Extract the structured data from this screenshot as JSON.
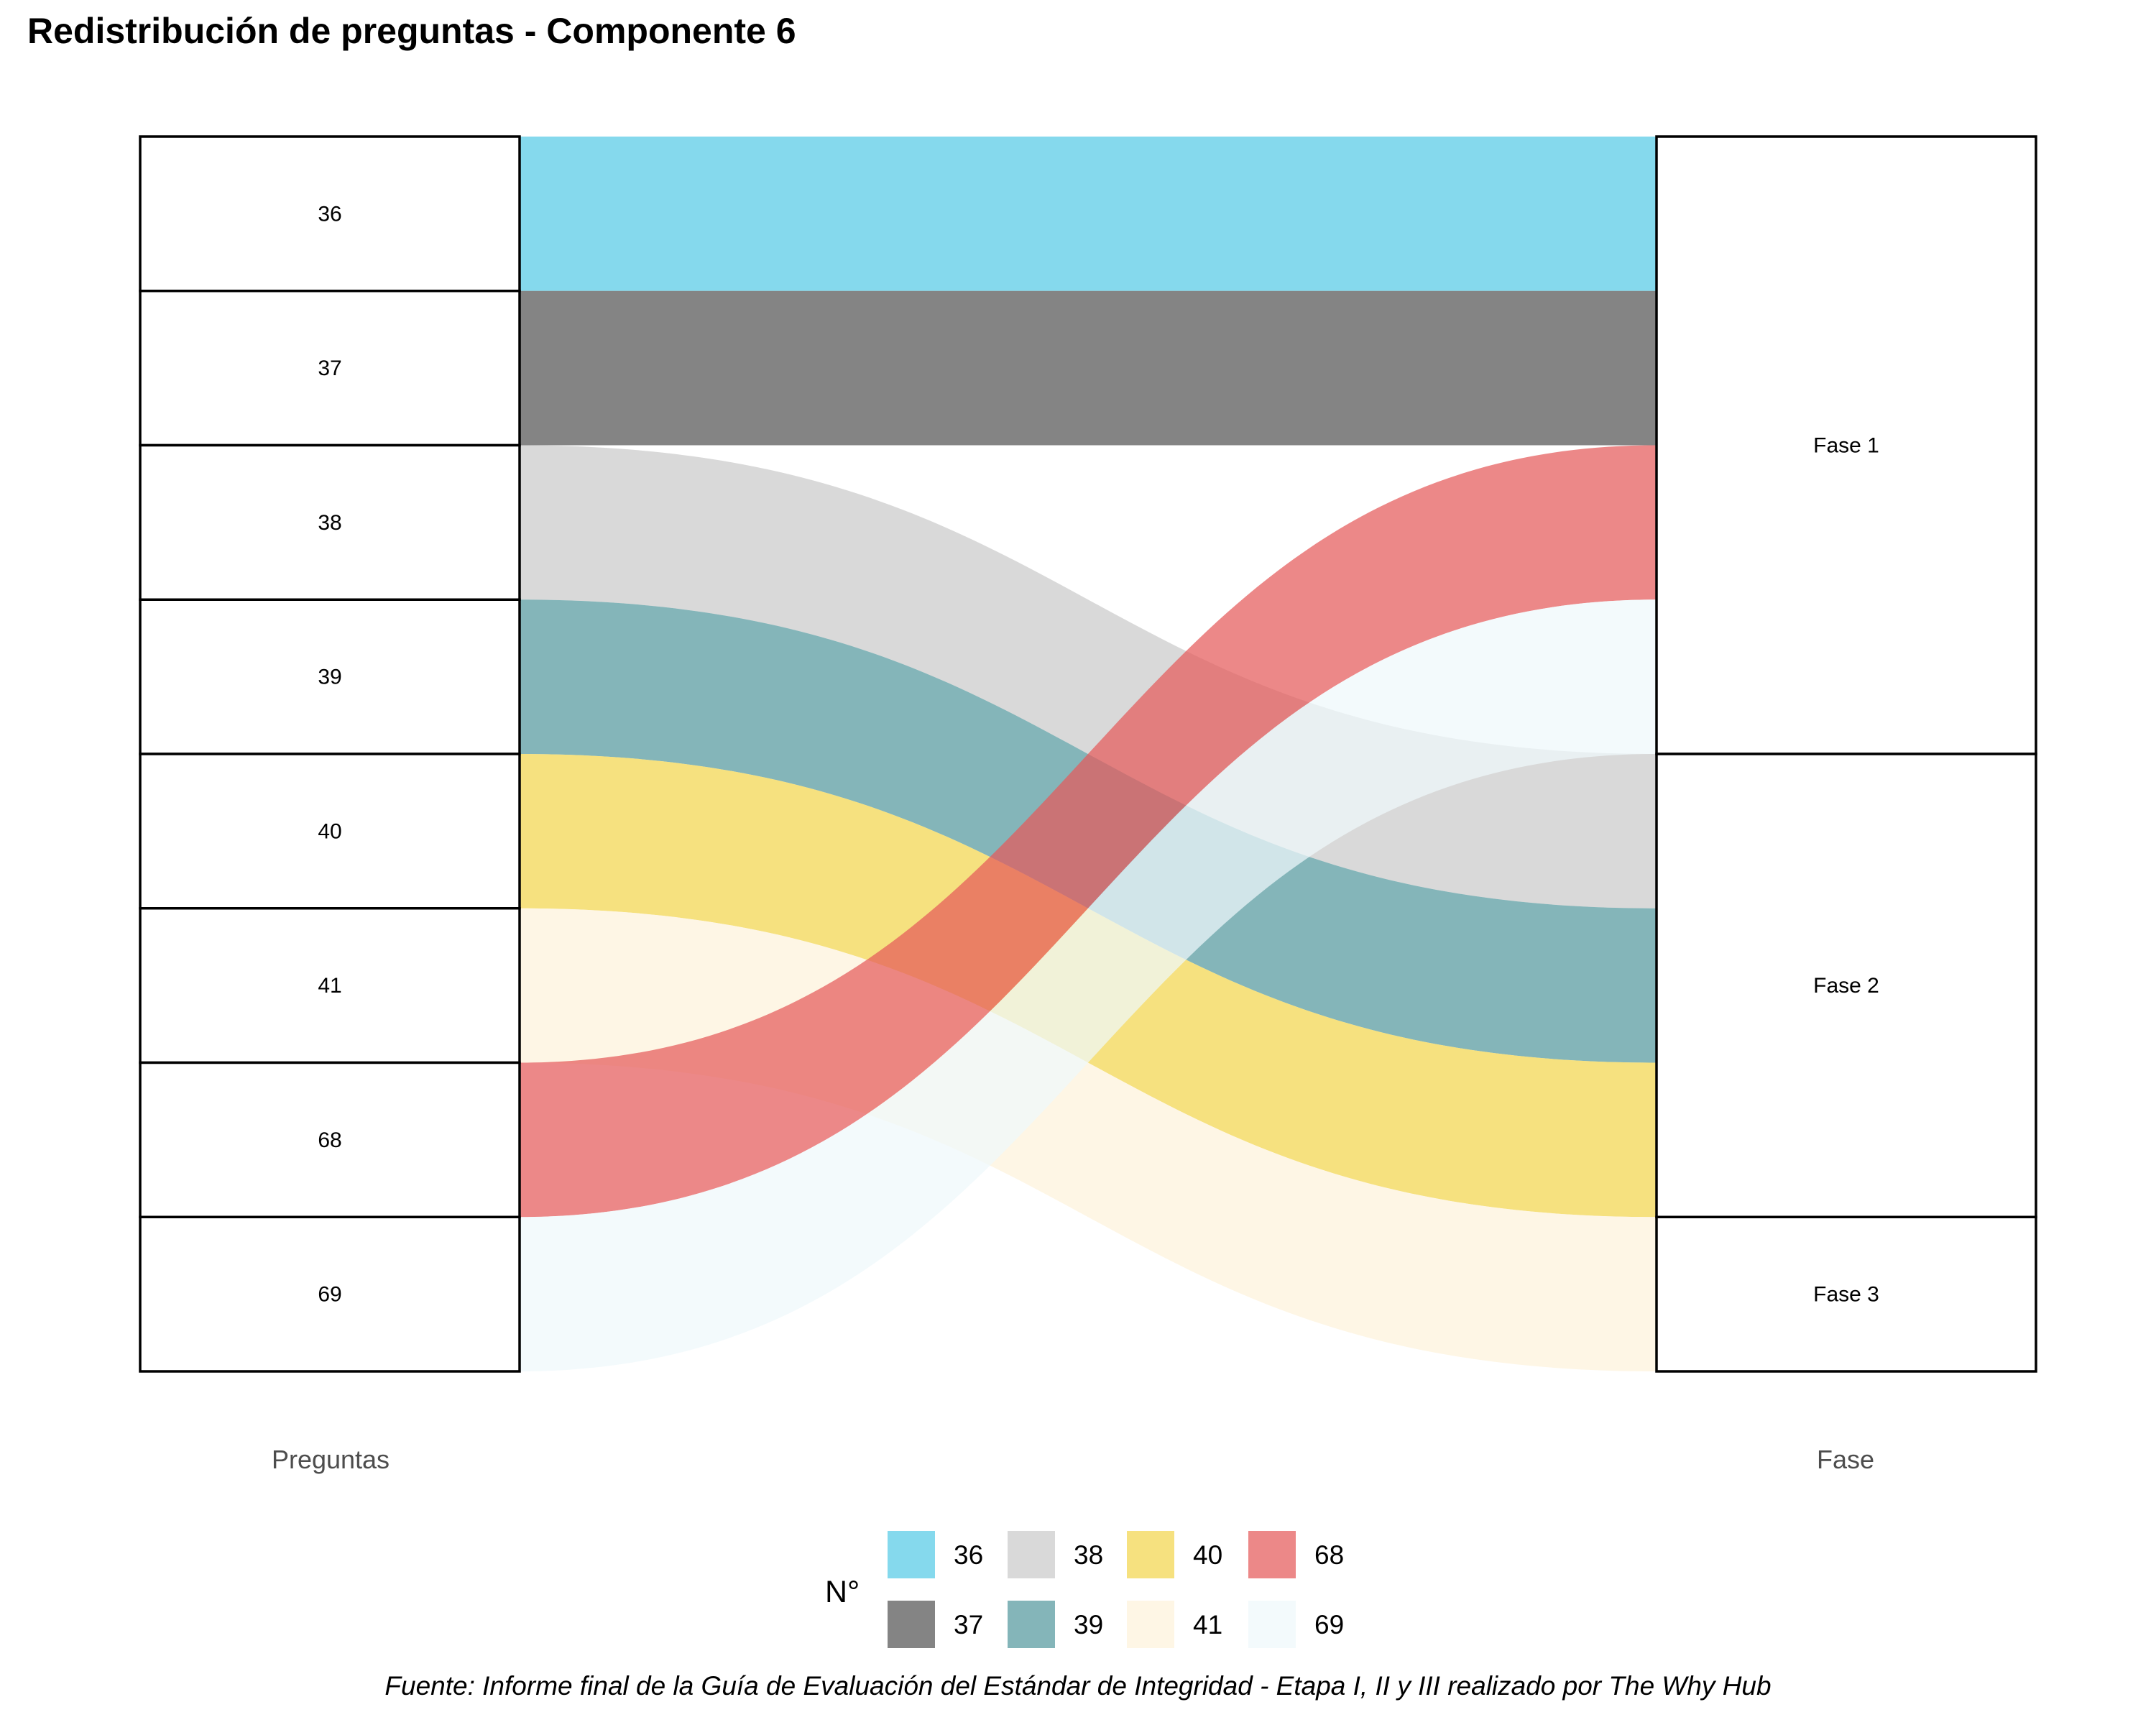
{
  "chart_data": {
    "type": "sankey",
    "title": "Redistribución de preguntas - Componente 6",
    "caption": "Fuente: Informe final de la Guía de Evaluación del Estándar de Integridad - Etapa I, II y III realizado por The Why Hub",
    "axes": [
      "Preguntas",
      "Fase"
    ],
    "left_nodes": [
      "36",
      "37",
      "38",
      "39",
      "40",
      "41",
      "68",
      "69"
    ],
    "right_nodes": [
      "Fase 1",
      "Fase 2",
      "Fase 3"
    ],
    "flows": [
      {
        "pregunta": "36",
        "fase": "Fase 1",
        "value": 1
      },
      {
        "pregunta": "37",
        "fase": "Fase 1",
        "value": 1
      },
      {
        "pregunta": "68",
        "fase": "Fase 1",
        "value": 1
      },
      {
        "pregunta": "69",
        "fase": "Fase 1",
        "value": 1
      },
      {
        "pregunta": "38",
        "fase": "Fase 2",
        "value": 1
      },
      {
        "pregunta": "39",
        "fase": "Fase 2",
        "value": 1
      },
      {
        "pregunta": "40",
        "fase": "Fase 2",
        "value": 1
      },
      {
        "pregunta": "41",
        "fase": "Fase 3",
        "value": 1
      }
    ],
    "legend": {
      "title": "N°",
      "position": "bottom",
      "entries": [
        {
          "label": "36",
          "color": "#56CBE6"
        },
        {
          "label": "37",
          "color": "#555555"
        },
        {
          "label": "38",
          "color": "#CBCBCB"
        },
        {
          "label": "39",
          "color": "#55989E"
        },
        {
          "label": "40",
          "color": "#F2D54D"
        },
        {
          "label": "41",
          "color": "#FEF3DB"
        },
        {
          "label": "68",
          "color": "#E55A5A"
        },
        {
          "label": "69",
          "color": "#EFF8FB"
        }
      ]
    }
  }
}
